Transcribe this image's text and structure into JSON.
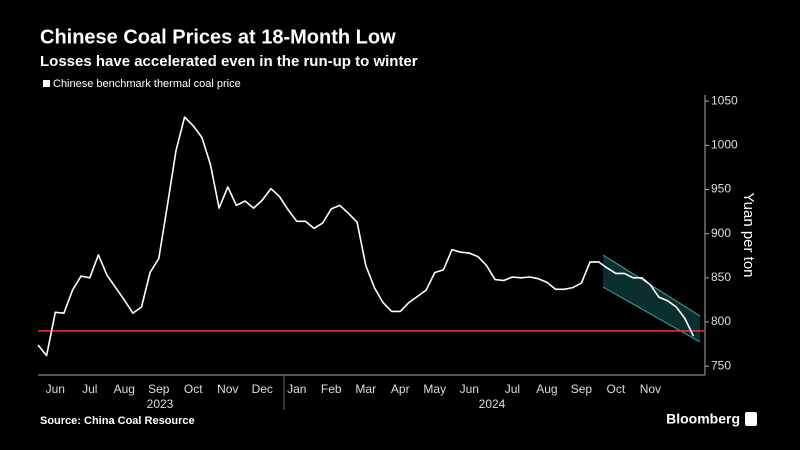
{
  "chart_data": {
    "type": "line",
    "title": "Chinese Coal Prices at 18-Month Low",
    "subtitle": "Losses have accelerated even in the run-up to winter",
    "y_axis_label": "Yuan per ton",
    "source": "Source: China Coal Resource",
    "brand": "Bloomberg",
    "year_labels": [
      "2023",
      "2024"
    ],
    "categories": [
      null,
      null,
      "Jun",
      null,
      null,
      null,
      "Jul",
      null,
      null,
      null,
      "Aug",
      null,
      null,
      null,
      "Sep",
      null,
      null,
      null,
      "Oct",
      null,
      null,
      null,
      "Nov",
      null,
      null,
      null,
      "Dec",
      null,
      null,
      null,
      "Jan",
      null,
      null,
      null,
      "Feb",
      null,
      null,
      null,
      "Mar",
      null,
      null,
      null,
      "Apr",
      null,
      null,
      null,
      "May",
      null,
      null,
      null,
      "Jun",
      null,
      null,
      null,
      null,
      "Jul",
      null,
      null,
      null,
      "Aug",
      null,
      null,
      null,
      "Sep",
      null,
      null,
      null,
      "Oct",
      null,
      null,
      null,
      "Nov",
      null,
      null,
      null,
      null,
      null
    ],
    "series": [
      {
        "name": "Chinese benchmark thermal coal price",
        "color": "#ffffff",
        "values": [
          774,
          762,
          811,
          810,
          836,
          852,
          850,
          876,
          853,
          839,
          825,
          810,
          817,
          856,
          872,
          932,
          994,
          1032,
          1022,
          1009,
          978,
          929,
          953,
          932,
          937,
          929,
          938,
          951,
          942,
          927,
          914,
          914,
          906,
          912,
          928,
          932,
          923,
          913,
          864,
          839,
          822,
          812,
          812,
          822,
          829,
          836,
          856,
          859,
          882,
          879,
          878,
          874,
          864,
          848,
          847,
          851,
          850,
          851,
          849,
          845,
          837,
          837,
          839,
          844,
          868,
          868,
          861,
          855,
          855,
          850,
          850,
          842,
          828,
          824,
          817,
          804,
          784
        ]
      }
    ],
    "reference_line": {
      "value": 790,
      "color": "#e8334a"
    },
    "ylim": [
      740,
      1057
    ],
    "yticks": [
      750,
      800,
      850,
      900,
      950,
      1000,
      1050
    ],
    "grid": false
  }
}
